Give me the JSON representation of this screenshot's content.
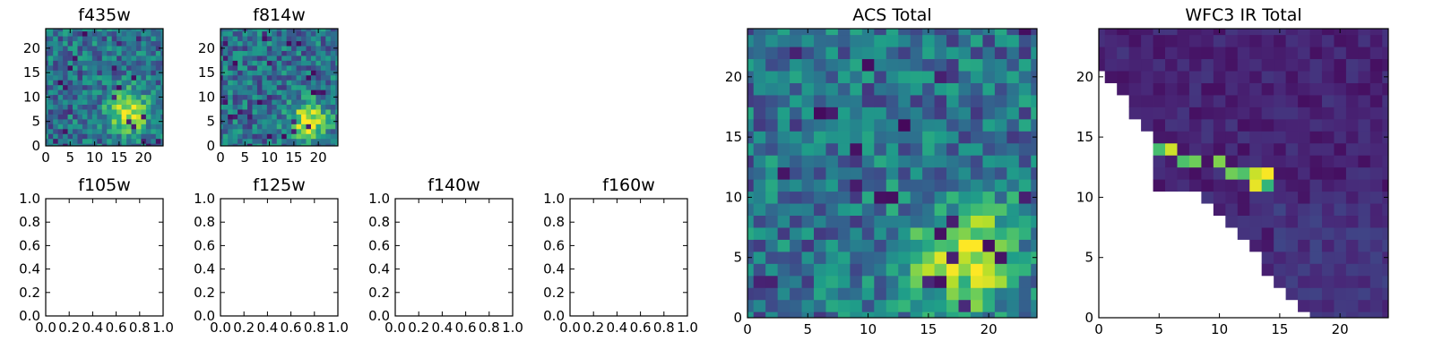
{
  "chart_data": [
    {
      "type": "heatmap",
      "title": "f435w",
      "xticks": [
        "0",
        "5",
        "10",
        "15",
        "20"
      ],
      "yticks": [
        "0",
        "5",
        "10",
        "15",
        "20"
      ],
      "xlim": [
        0,
        24
      ],
      "ylim": [
        0,
        24
      ],
      "colormap": "viridis",
      "blob": [
        17,
        7,
        3.0
      ]
    },
    {
      "type": "heatmap",
      "title": "f814w",
      "xticks": [
        "0",
        "5",
        "10",
        "15",
        "20"
      ],
      "yticks": [
        "0",
        "5",
        "10",
        "15",
        "20"
      ],
      "xlim": [
        0,
        24
      ],
      "ylim": [
        0,
        24
      ],
      "colormap": "viridis",
      "blob": [
        18,
        5,
        2.8
      ]
    },
    {
      "type": "empty",
      "title": "f105w",
      "xticks": [
        "0.0",
        "0.2",
        "0.4",
        "0.6",
        "0.8",
        "1.0"
      ],
      "yticks": [
        "0.0",
        "0.2",
        "0.4",
        "0.6",
        "0.8",
        "1.0"
      ],
      "xlim": [
        0,
        1
      ],
      "ylim": [
        0,
        1
      ]
    },
    {
      "type": "empty",
      "title": "f125w",
      "xticks": [
        "0.0",
        "0.2",
        "0.4",
        "0.6",
        "0.8",
        "1.0"
      ],
      "yticks": [
        "0.0",
        "0.2",
        "0.4",
        "0.6",
        "0.8",
        "1.0"
      ],
      "xlim": [
        0,
        1
      ],
      "ylim": [
        0,
        1
      ]
    },
    {
      "type": "empty",
      "title": "f140w",
      "xticks": [
        "0.0",
        "0.2",
        "0.4",
        "0.6",
        "0.8",
        "1.0"
      ],
      "yticks": [
        "0.0",
        "0.2",
        "0.4",
        "0.6",
        "0.8",
        "1.0"
      ],
      "xlim": [
        0,
        1
      ],
      "ylim": [
        0,
        1
      ]
    },
    {
      "type": "empty",
      "title": "f160w",
      "xticks": [
        "0.0",
        "0.2",
        "0.4",
        "0.6",
        "0.8",
        "1.0"
      ],
      "yticks": [
        "0.0",
        "0.2",
        "0.4",
        "0.6",
        "0.8",
        "1.0"
      ],
      "xlim": [
        0,
        1
      ],
      "ylim": [
        0,
        1
      ]
    },
    {
      "type": "heatmap",
      "title": "ACS Total",
      "xticks": [
        "0",
        "5",
        "10",
        "15",
        "20"
      ],
      "yticks": [
        "0",
        "5",
        "10",
        "15",
        "20"
      ],
      "xlim": [
        0,
        24
      ],
      "ylim": [
        0,
        24
      ],
      "colormap": "viridis",
      "blob": [
        18,
        5,
        3.2
      ]
    },
    {
      "type": "heatmap",
      "title": "WFC3 IR Total",
      "xticks": [
        "0",
        "5",
        "10",
        "15",
        "20"
      ],
      "yticks": [
        "0",
        "5",
        "10",
        "15",
        "20"
      ],
      "xlim": [
        0,
        24
      ],
      "ylim": [
        0,
        24
      ],
      "colormap": "viridis",
      "masked_region": "lower-left triangle (no data)",
      "bright_cells": [
        [
          5,
          14
        ],
        [
          6,
          14
        ],
        [
          7,
          13
        ],
        [
          8,
          13
        ],
        [
          10,
          13
        ],
        [
          11,
          12
        ],
        [
          12,
          12
        ],
        [
          13,
          12
        ],
        [
          14,
          12
        ],
        [
          14,
          11
        ],
        [
          13,
          11
        ]
      ]
    }
  ]
}
